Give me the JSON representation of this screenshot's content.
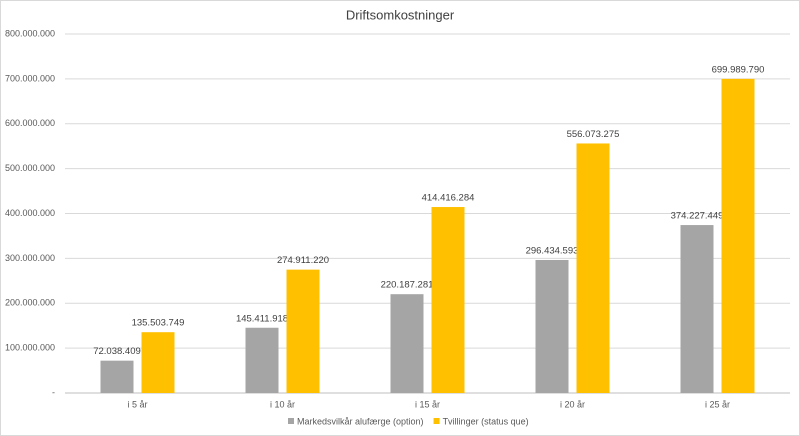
{
  "chart_data": {
    "type": "bar",
    "title": "Driftsomkostninger",
    "categories": [
      "i 5 år",
      "i 10 år",
      "i 15 år",
      "i 20 år",
      "i 25 år"
    ],
    "series": [
      {
        "name": "Markedsvilkår alufærge (option)",
        "color": "#a5a5a5",
        "values": [
          72038409,
          145411918,
          220187281,
          296434593,
          374227449
        ],
        "value_labels": [
          "72.038.409",
          "145.411.918",
          "220.187.281",
          "296.434.593",
          "374.227.449"
        ]
      },
      {
        "name": "Tvillinger (status que)",
        "color": "#ffc000",
        "values": [
          135503749,
          274911220,
          414416284,
          556073275,
          699989790
        ],
        "value_labels": [
          "135.503.749",
          "274.911.220",
          "414.416.284",
          "556.073.275",
          "699.989.790"
        ]
      }
    ],
    "ylim": [
      0,
      800000000
    ],
    "yticks": [
      {
        "value": 0,
        "label": "-"
      },
      {
        "value": 100000000,
        "label": "100.000.000"
      },
      {
        "value": 200000000,
        "label": "200.000.000"
      },
      {
        "value": 300000000,
        "label": "300.000.000"
      },
      {
        "value": 400000000,
        "label": "400.000.000"
      },
      {
        "value": 500000000,
        "label": "500.000.000"
      },
      {
        "value": 600000000,
        "label": "600.000.000"
      },
      {
        "value": 700000000,
        "label": "700.000.000"
      },
      {
        "value": 800000000,
        "label": "800.000.000"
      }
    ],
    "grid": true
  }
}
